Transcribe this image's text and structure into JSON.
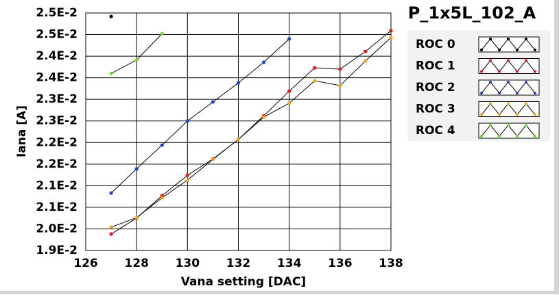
{
  "chart_data": {
    "type": "line",
    "title": "P_1x5L_102_A",
    "xlabel": "Vana setting [DAC]",
    "ylabel": "Iana [A]",
    "xlim": [
      126,
      138
    ],
    "xticks": [
      126,
      128,
      130,
      132,
      134,
      136,
      138
    ],
    "ylim": [
      0.0195,
      0.025
    ],
    "yticks": [
      {
        "value": 0.0195,
        "label": "1.9E-2"
      },
      {
        "value": 0.02,
        "label": "2.0E-2"
      },
      {
        "value": 0.0205,
        "label": "2.1E-2"
      },
      {
        "value": 0.021,
        "label": "2.1E-2"
      },
      {
        "value": 0.0215,
        "label": "2.2E-2"
      },
      {
        "value": 0.022,
        "label": "2.2E-2"
      },
      {
        "value": 0.0225,
        "label": "2.3E-2"
      },
      {
        "value": 0.023,
        "label": "2.3E-2"
      },
      {
        "value": 0.0235,
        "label": "2.4E-2"
      },
      {
        "value": 0.024,
        "label": "2.4E-2"
      },
      {
        "value": 0.0245,
        "label": "2.5E-2"
      },
      {
        "value": 0.025,
        "label": "2.5E-2"
      }
    ],
    "grid": true,
    "series": [
      {
        "name": "ROC 0",
        "color": "#000000",
        "x": [
          127
        ],
        "values": [
          0.02492
        ]
      },
      {
        "name": "ROC 1",
        "color": "#e8141a",
        "x": [
          127,
          128,
          129,
          130,
          131,
          132,
          133,
          134,
          135,
          136,
          137,
          138
        ],
        "values": [
          0.01988,
          0.02025,
          0.02077,
          0.02124,
          0.02162,
          0.02207,
          0.02262,
          0.02319,
          0.02373,
          0.0237,
          0.02411,
          0.02459
        ]
      },
      {
        "name": "ROC 2",
        "color": "#1e3fc8",
        "x": [
          127,
          128,
          129,
          130,
          131,
          132,
          133,
          134
        ],
        "values": [
          0.02083,
          0.02139,
          0.02194,
          0.0225,
          0.02294,
          0.02338,
          0.02386,
          0.0244
        ]
      },
      {
        "name": "ROC 3",
        "color": "#f5a31c",
        "x": [
          127,
          128,
          129,
          130,
          131,
          132,
          133,
          134,
          135,
          136,
          137,
          138
        ],
        "values": [
          0.02004,
          0.02026,
          0.02072,
          0.02113,
          0.02161,
          0.02207,
          0.02259,
          0.02291,
          0.02343,
          0.02332,
          0.02389,
          0.02443
        ]
      },
      {
        "name": "ROC 4",
        "color": "#6edc2c",
        "x": [
          127,
          128,
          129
        ],
        "values": [
          0.0236,
          0.02391,
          0.02452
        ]
      }
    ]
  }
}
